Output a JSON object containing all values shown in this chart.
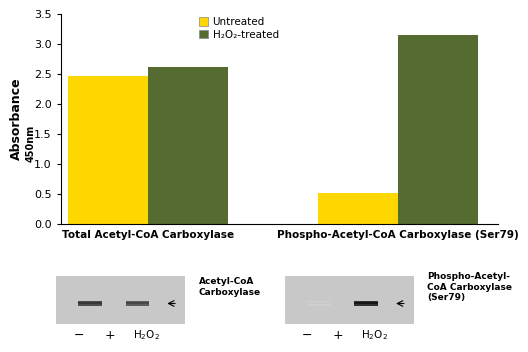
{
  "groups": [
    "Total Acetyl-CoA Carboxylase",
    "Phospho-Acetyl-CoA Carboxylase (Ser79)"
  ],
  "untreated_values": [
    2.47,
    0.52
  ],
  "treated_values": [
    2.61,
    3.14
  ],
  "untreated_color": "#FFD700",
  "treated_color": "#556B2F",
  "ylim": [
    0,
    3.5
  ],
  "yticks": [
    0,
    0.5,
    1.0,
    1.5,
    2.0,
    2.5,
    3.0,
    3.5
  ],
  "ylabel": "Absorbance",
  "ylabel_sub": "450nm",
  "legend_untreated": "Untreated",
  "legend_treated": "H₂O₂-treated",
  "bar_width": 0.32,
  "background_color": "#ffffff",
  "label_fontsize": 7.5,
  "tick_fontsize": 8,
  "legend_fontsize": 7.5
}
